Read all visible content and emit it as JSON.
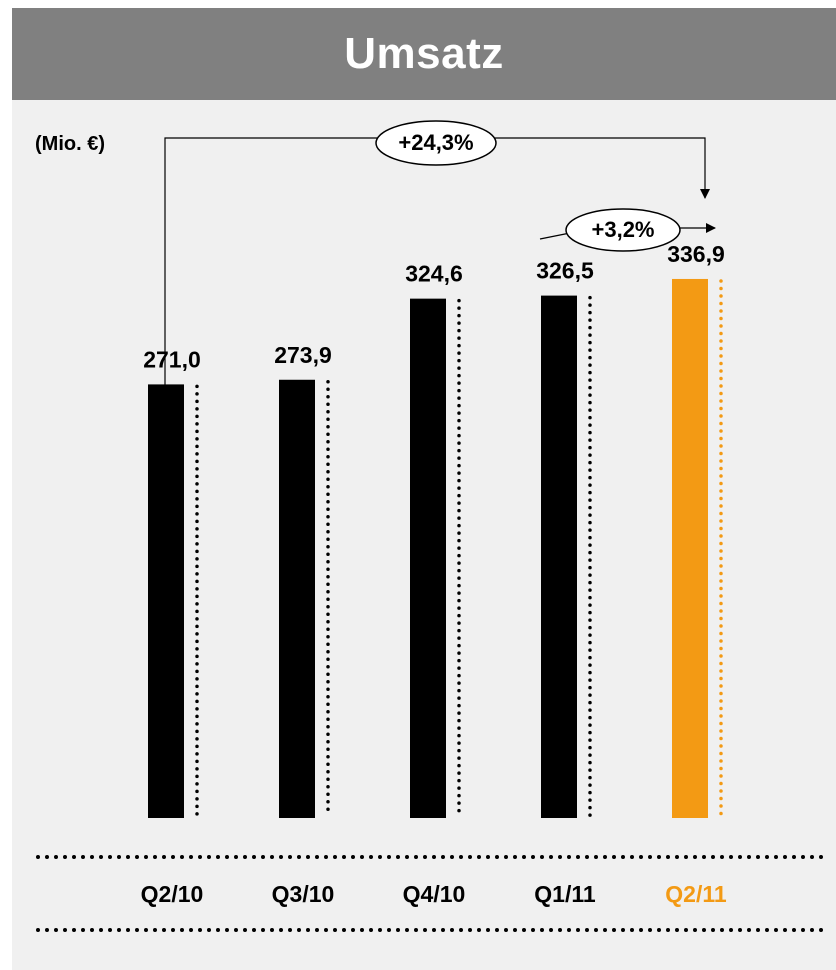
{
  "chart_data": {
    "type": "bar",
    "title": "Umsatz",
    "unit_label": "(Mio. €)",
    "categories": [
      "Q2/10",
      "Q3/10",
      "Q4/10",
      "Q1/11",
      "Q2/11"
    ],
    "values": [
      271.0,
      273.9,
      324.6,
      326.5,
      336.9
    ],
    "value_labels": [
      "271,0",
      "273,9",
      "324,6",
      "326,5",
      "336,9"
    ],
    "highlight_index": 4,
    "annotations": [
      {
        "label": "+24,3%",
        "from": "Q2/10",
        "to": "Q2/11"
      },
      {
        "label": "+3,2%",
        "from": "Q1/11",
        "to": "Q2/11"
      }
    ],
    "grid": false,
    "legend": "none"
  },
  "colors": {
    "bar": "#000000",
    "highlight": "#f39a14",
    "header_bg": "#808080",
    "panel_bg": "#f0f0f0"
  }
}
